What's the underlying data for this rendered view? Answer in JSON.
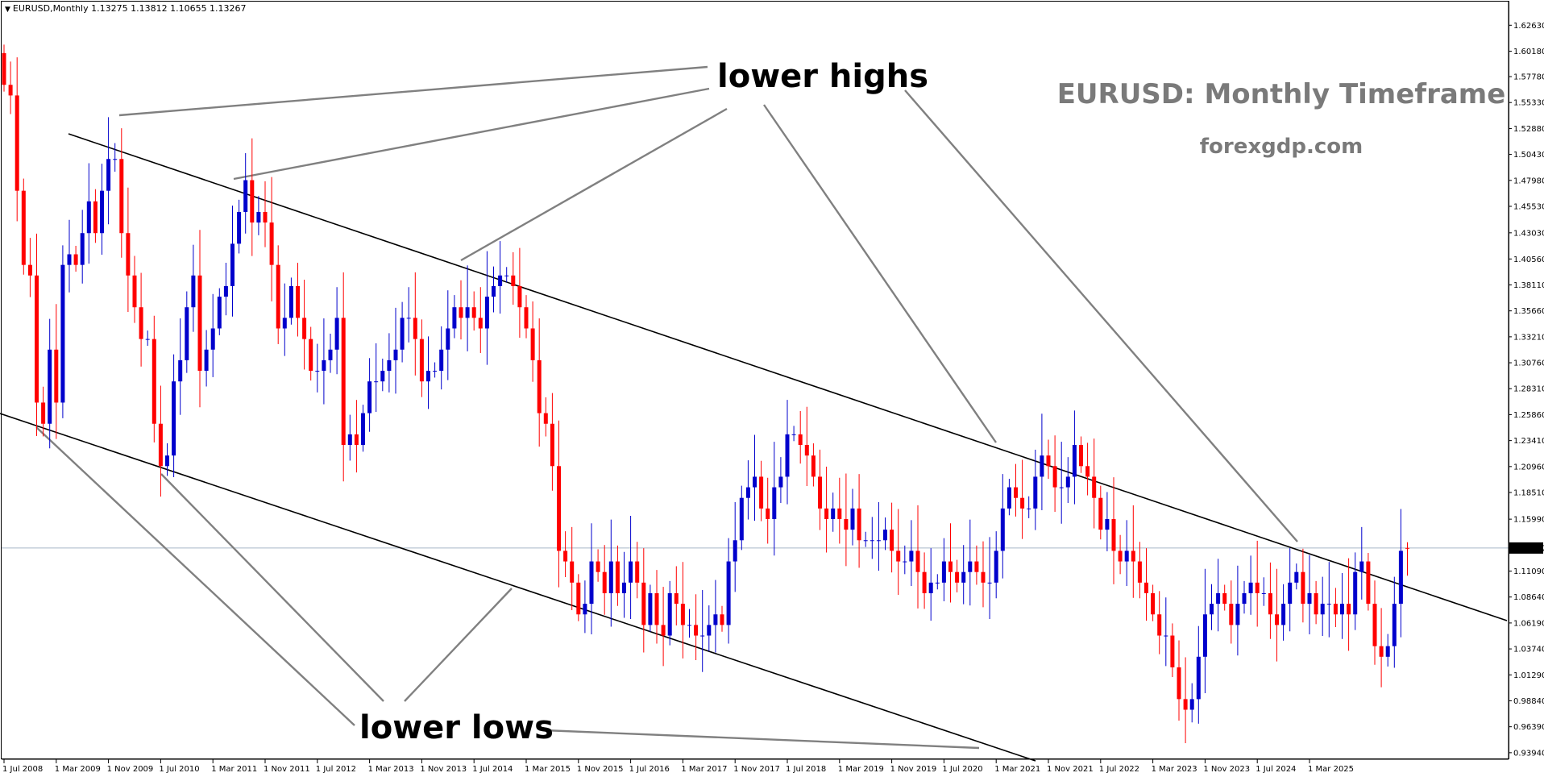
{
  "header": {
    "symbol_line": "EURUSD,Monthly  1.13275 1.13812 1.10655 1.13267"
  },
  "watermark": {
    "title": "EURUSD: Monthly Timeframe",
    "site": "forexgdp.com"
  },
  "annotations": {
    "lower_highs": "lower highs",
    "lower_lows": "lower lows"
  },
  "colors": {
    "bull": "#0000cc",
    "bear": "#ff0000",
    "trendline": "#000000",
    "pointer": "#808080",
    "price_line": "#a8b8c8",
    "watermark": "#7a7a7a"
  },
  "chart_data": {
    "type": "candlestick",
    "symbol": "EURUSD",
    "timeframe": "Monthly",
    "current_price": "1.13267",
    "ohlc_header": {
      "open": 1.13275,
      "high": 1.13812,
      "low": 1.10655,
      "close": 1.13267
    },
    "ylim": [
      0.9332,
      1.6486
    ],
    "y_ticks": [
      "1.62630",
      "1.60180",
      "1.57780",
      "1.55330",
      "1.52880",
      "1.50430",
      "1.47980",
      "1.45530",
      "1.43030",
      "1.40560",
      "1.38110",
      "1.35660",
      "1.33210",
      "1.30760",
      "1.28310",
      "1.25860",
      "1.23410",
      "1.20960",
      "1.18510",
      "1.15990",
      "1.13267",
      "1.11090",
      "1.08640",
      "1.06190",
      "1.03740",
      "1.01290",
      "0.98840",
      "0.96390",
      "0.93940"
    ],
    "x_ticks": [
      {
        "label": "1 Jul 2008",
        "i": 0
      },
      {
        "label": "1 Mar 2009",
        "i": 8
      },
      {
        "label": "1 Nov 2009",
        "i": 16
      },
      {
        "label": "1 Jul 2010",
        "i": 24
      },
      {
        "label": "1 Mar 2011",
        "i": 32
      },
      {
        "label": "1 Nov 2011",
        "i": 40
      },
      {
        "label": "1 Jul 2012",
        "i": 48
      },
      {
        "label": "1 Mar 2013",
        "i": 56
      },
      {
        "label": "1 Nov 2013",
        "i": 64
      },
      {
        "label": "1 Jul 2014",
        "i": 72
      },
      {
        "label": "1 Mar 2015",
        "i": 80
      },
      {
        "label": "1 Nov 2015",
        "i": 88
      },
      {
        "label": "1 Jul 2016",
        "i": 96
      },
      {
        "label": "1 Mar 2017",
        "i": 104
      },
      {
        "label": "1 Nov 2017",
        "i": 112
      },
      {
        "label": "1 Jul 2018",
        "i": 120
      },
      {
        "label": "1 Mar 2019",
        "i": 128
      },
      {
        "label": "1 Nov 2019",
        "i": 136
      },
      {
        "label": "1 Jul 2020",
        "i": 144
      },
      {
        "label": "1 Mar 2021",
        "i": 152
      },
      {
        "label": "1 Nov 2021",
        "i": 160
      },
      {
        "label": "1 Jul 2022",
        "i": 168
      },
      {
        "label": "1 Mar 2023",
        "i": 176
      },
      {
        "label": "1 Nov 2023",
        "i": 184
      },
      {
        "label": "1 Jul 2024",
        "i": 192
      },
      {
        "label": "1 Mar 2025",
        "i": 200
      }
    ],
    "closes": [
      1.57,
      1.56,
      1.47,
      1.4,
      1.39,
      1.27,
      1.25,
      1.32,
      1.27,
      1.4,
      1.41,
      1.4,
      1.43,
      1.46,
      1.43,
      1.47,
      1.5,
      1.5,
      1.43,
      1.39,
      1.36,
      1.33,
      1.33,
      1.25,
      1.21,
      1.22,
      1.29,
      1.31,
      1.36,
      1.39,
      1.3,
      1.32,
      1.34,
      1.37,
      1.38,
      1.42,
      1.45,
      1.48,
      1.44,
      1.45,
      1.44,
      1.4,
      1.34,
      1.35,
      1.38,
      1.35,
      1.33,
      1.3,
      1.3,
      1.31,
      1.32,
      1.35,
      1.23,
      1.24,
      1.23,
      1.26,
      1.29,
      1.29,
      1.3,
      1.31,
      1.32,
      1.35,
      1.35,
      1.33,
      1.29,
      1.3,
      1.3,
      1.32,
      1.34,
      1.36,
      1.35,
      1.36,
      1.35,
      1.34,
      1.37,
      1.38,
      1.39,
      1.39,
      1.38,
      1.36,
      1.34,
      1.31,
      1.26,
      1.25,
      1.21,
      1.13,
      1.12,
      1.1,
      1.07,
      1.08,
      1.12,
      1.11,
      1.09,
      1.12,
      1.09,
      1.1,
      1.12,
      1.1,
      1.06,
      1.09,
      1.06,
      1.05,
      1.09,
      1.08,
      1.06,
      1.06,
      1.05,
      1.05,
      1.06,
      1.07,
      1.06,
      1.12,
      1.14,
      1.18,
      1.19,
      1.2,
      1.17,
      1.16,
      1.19,
      1.2,
      1.24,
      1.24,
      1.23,
      1.22,
      1.2,
      1.17,
      1.16,
      1.17,
      1.16,
      1.15,
      1.17,
      1.14,
      1.14,
      1.14,
      1.14,
      1.15,
      1.13,
      1.12,
      1.12,
      1.13,
      1.11,
      1.09,
      1.1,
      1.1,
      1.12,
      1.11,
      1.1,
      1.11,
      1.12,
      1.11,
      1.1,
      1.1,
      1.13,
      1.17,
      1.19,
      1.18,
      1.17,
      1.17,
      1.2,
      1.22,
      1.21,
      1.19,
      1.19,
      1.2,
      1.23,
      1.21,
      1.2,
      1.18,
      1.15,
      1.16,
      1.13,
      1.12,
      1.13,
      1.12,
      1.1,
      1.09,
      1.07,
      1.05,
      1.05,
      1.02,
      0.99,
      0.98,
      0.99,
      1.03,
      1.07,
      1.08,
      1.09,
      1.08,
      1.06,
      1.08,
      1.09,
      1.1,
      1.09,
      1.09,
      1.07,
      1.06,
      1.08,
      1.1,
      1.11,
      1.08,
      1.09,
      1.07,
      1.08,
      1.08,
      1.07,
      1.08,
      1.07,
      1.11,
      1.12,
      1.08,
      1.04,
      1.03,
      1.04,
      1.08,
      1.13,
      1.13
    ]
  }
}
